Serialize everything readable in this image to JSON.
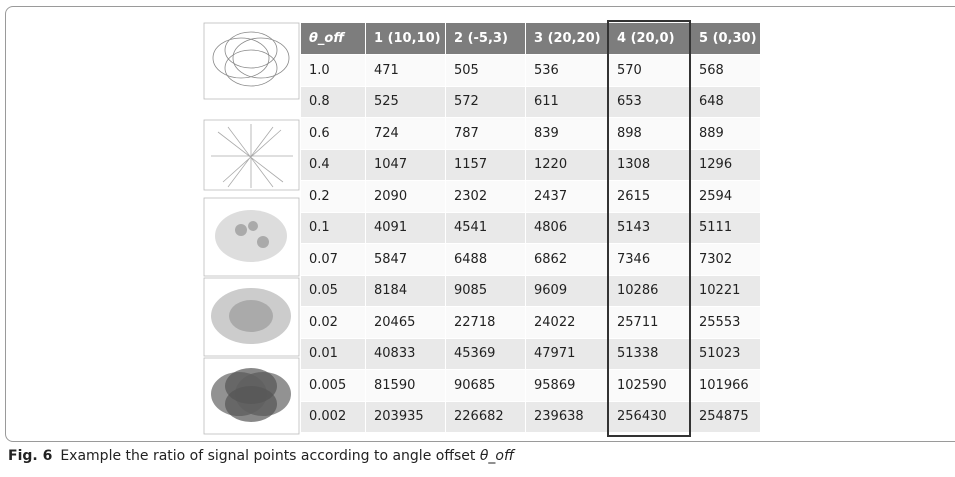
{
  "table": {
    "header": [
      "θ_off",
      "1 (10,10)",
      "2 (-5,3)",
      "3 (20,20)",
      "4 (20,0)",
      "5 (0,30)"
    ],
    "rows": [
      [
        "1.0",
        "471",
        "505",
        "536",
        "570",
        "568"
      ],
      [
        "0.8",
        "525",
        "572",
        "611",
        "653",
        "648"
      ],
      [
        "0.6",
        "724",
        "787",
        "839",
        "898",
        "889"
      ],
      [
        "0.4",
        "1047",
        "1157",
        "1220",
        "1308",
        "1296"
      ],
      [
        "0.2",
        "2090",
        "2302",
        "2437",
        "2615",
        "2594"
      ],
      [
        "0.1",
        "4091",
        "4541",
        "4806",
        "5143",
        "5111"
      ],
      [
        "0.07",
        "5847",
        "6488",
        "6862",
        "7346",
        "7302"
      ],
      [
        "0.05",
        "8184",
        "9085",
        "9609",
        "10286",
        "10221"
      ],
      [
        "0.02",
        "20465",
        "22718",
        "24022",
        "25711",
        "25553"
      ],
      [
        "0.01",
        "40833",
        "45369",
        "47971",
        "51338",
        "51023"
      ],
      [
        "0.005",
        "81590",
        "90685",
        "95869",
        "102590",
        "101966"
      ],
      [
        "0.002",
        "203935",
        "226682",
        "239638",
        "256430",
        "254875"
      ]
    ]
  },
  "caption": {
    "label": "Fig. 6",
    "text": "Example the ratio of signal points according to angle offset",
    "symbol": "θ_off"
  }
}
